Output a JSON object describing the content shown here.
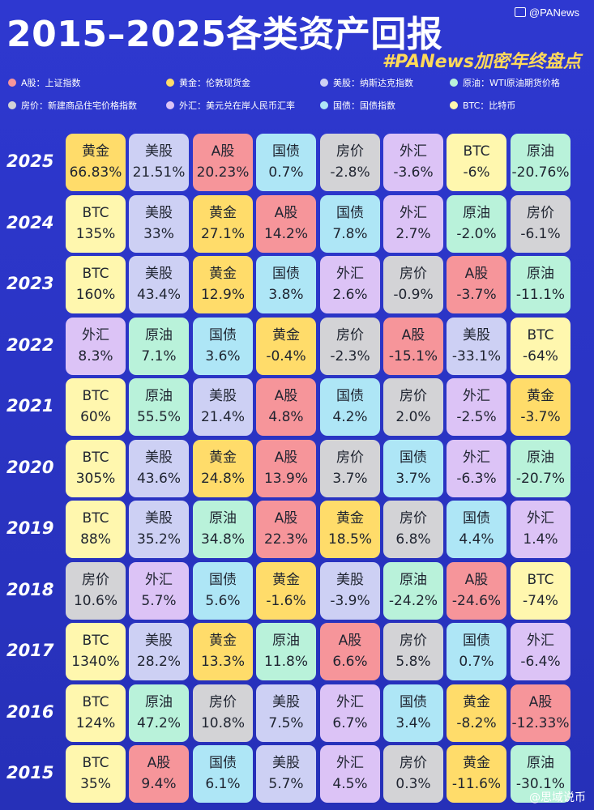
{
  "title": "2015–2025各类资产回报",
  "brand": "@PANews",
  "subtitle": "#PANews加密年终盘点",
  "watermark": "@思域说币",
  "legend": [
    {
      "label": "A股：上证指数",
      "color": "#f6959a",
      "class": "c-ashare"
    },
    {
      "label": "黄金：伦敦现货金",
      "color": "#ffdc6a",
      "class": "c-gold"
    },
    {
      "label": "美股：纳斯达克指数",
      "color": "#cdd0f4",
      "class": "c-us"
    },
    {
      "label": "原油：WTI原油期货价格",
      "color": "#b9f2da",
      "class": "c-oil"
    },
    {
      "label": "房价：新建商品住宅价格指数",
      "color": "#d3d3d6",
      "class": "c-house"
    },
    {
      "label": "外汇：美元兑在岸人民币汇率",
      "color": "#dcc3f6",
      "class": "c-fx"
    },
    {
      "label": "国债：国债指数",
      "color": "#aee6f6",
      "class": "c-bond"
    },
    {
      "label": "BTC：比特币",
      "color": "#fff7ae",
      "class": "c-btc"
    }
  ],
  "rows": [
    {
      "year": "2025",
      "cells": [
        {
          "asset": "黄金",
          "ret": "66.83%"
        },
        {
          "asset": "美股",
          "ret": "21.51%"
        },
        {
          "asset": "A股",
          "ret": "20.23%"
        },
        {
          "asset": "国债",
          "ret": "0.7%"
        },
        {
          "asset": "房价",
          "ret": "-2.8%"
        },
        {
          "asset": "外汇",
          "ret": "-3.6%"
        },
        {
          "asset": "BTC",
          "ret": "-6%"
        },
        {
          "asset": "原油",
          "ret": "-20.76%"
        }
      ]
    },
    {
      "year": "2024",
      "cells": [
        {
          "asset": "BTC",
          "ret": "135%"
        },
        {
          "asset": "美股",
          "ret": "33%"
        },
        {
          "asset": "黄金",
          "ret": "27.1%"
        },
        {
          "asset": "A股",
          "ret": "14.2%"
        },
        {
          "asset": "国债",
          "ret": "7.8%"
        },
        {
          "asset": "外汇",
          "ret": "2.7%"
        },
        {
          "asset": "原油",
          "ret": "-2.0%"
        },
        {
          "asset": "房价",
          "ret": "-6.1%"
        }
      ]
    },
    {
      "year": "2023",
      "cells": [
        {
          "asset": "BTC",
          "ret": "160%"
        },
        {
          "asset": "美股",
          "ret": "43.4%"
        },
        {
          "asset": "黄金",
          "ret": "12.9%"
        },
        {
          "asset": "国债",
          "ret": "3.8%"
        },
        {
          "asset": "外汇",
          "ret": "2.6%"
        },
        {
          "asset": "房价",
          "ret": "-0.9%"
        },
        {
          "asset": "A股",
          "ret": "-3.7%"
        },
        {
          "asset": "原油",
          "ret": "-11.1%"
        }
      ]
    },
    {
      "year": "2022",
      "cells": [
        {
          "asset": "外汇",
          "ret": "8.3%"
        },
        {
          "asset": "原油",
          "ret": "7.1%"
        },
        {
          "asset": "国债",
          "ret": "3.6%"
        },
        {
          "asset": "黄金",
          "ret": "-0.4%"
        },
        {
          "asset": "房价",
          "ret": "-2.3%"
        },
        {
          "asset": "A股",
          "ret": "-15.1%"
        },
        {
          "asset": "美股",
          "ret": "-33.1%"
        },
        {
          "asset": "BTC",
          "ret": "-64%"
        }
      ]
    },
    {
      "year": "2021",
      "cells": [
        {
          "asset": "BTC",
          "ret": "60%"
        },
        {
          "asset": "原油",
          "ret": "55.5%"
        },
        {
          "asset": "美股",
          "ret": "21.4%"
        },
        {
          "asset": "A股",
          "ret": "4.8%"
        },
        {
          "asset": "国债",
          "ret": "4.2%"
        },
        {
          "asset": "房价",
          "ret": "2.0%"
        },
        {
          "asset": "外汇",
          "ret": "-2.5%"
        },
        {
          "asset": "黄金",
          "ret": "-3.7%"
        }
      ]
    },
    {
      "year": "2020",
      "cells": [
        {
          "asset": "BTC",
          "ret": "305%"
        },
        {
          "asset": "美股",
          "ret": "43.6%"
        },
        {
          "asset": "黄金",
          "ret": "24.8%"
        },
        {
          "asset": "A股",
          "ret": "13.9%"
        },
        {
          "asset": "房价",
          "ret": "3.7%"
        },
        {
          "asset": "国债",
          "ret": "3.7%"
        },
        {
          "asset": "外汇",
          "ret": "-6.3%"
        },
        {
          "asset": "原油",
          "ret": "-20.7%"
        }
      ]
    },
    {
      "year": "2019",
      "cells": [
        {
          "asset": "BTC",
          "ret": "88%"
        },
        {
          "asset": "美股",
          "ret": "35.2%"
        },
        {
          "asset": "原油",
          "ret": "34.8%"
        },
        {
          "asset": "A股",
          "ret": "22.3%"
        },
        {
          "asset": "黄金",
          "ret": "18.5%"
        },
        {
          "asset": "房价",
          "ret": "6.8%"
        },
        {
          "asset": "国债",
          "ret": "4.4%"
        },
        {
          "asset": "外汇",
          "ret": "1.4%"
        }
      ]
    },
    {
      "year": "2018",
      "cells": [
        {
          "asset": "房价",
          "ret": "10.6%"
        },
        {
          "asset": "外汇",
          "ret": "5.7%"
        },
        {
          "asset": "国债",
          "ret": "5.6%"
        },
        {
          "asset": "黄金",
          "ret": "-1.6%"
        },
        {
          "asset": "美股",
          "ret": "-3.9%"
        },
        {
          "asset": "原油",
          "ret": "-24.2%"
        },
        {
          "asset": "A股",
          "ret": "-24.6%"
        },
        {
          "asset": "BTC",
          "ret": "-74%"
        }
      ]
    },
    {
      "year": "2017",
      "cells": [
        {
          "asset": "BTC",
          "ret": "1340%"
        },
        {
          "asset": "美股",
          "ret": "28.2%"
        },
        {
          "asset": "黄金",
          "ret": "13.3%"
        },
        {
          "asset": "原油",
          "ret": "11.8%"
        },
        {
          "asset": "A股",
          "ret": "6.6%"
        },
        {
          "asset": "房价",
          "ret": "5.8%"
        },
        {
          "asset": "国债",
          "ret": "0.7%"
        },
        {
          "asset": "外汇",
          "ret": "-6.4%"
        }
      ]
    },
    {
      "year": "2016",
      "cells": [
        {
          "asset": "BTC",
          "ret": "124%"
        },
        {
          "asset": "原油",
          "ret": "47.2%"
        },
        {
          "asset": "房价",
          "ret": "10.8%"
        },
        {
          "asset": "美股",
          "ret": "7.5%"
        },
        {
          "asset": "外汇",
          "ret": "6.7%"
        },
        {
          "asset": "国债",
          "ret": "3.4%"
        },
        {
          "asset": "黄金",
          "ret": "-8.2%"
        },
        {
          "asset": "A股",
          "ret": "-12.33%"
        }
      ]
    },
    {
      "year": "2015",
      "cells": [
        {
          "asset": "BTC",
          "ret": "35%"
        },
        {
          "asset": "A股",
          "ret": "9.4%"
        },
        {
          "asset": "国债",
          "ret": "6.1%"
        },
        {
          "asset": "美股",
          "ret": "5.7%"
        },
        {
          "asset": "外汇",
          "ret": "4.5%"
        },
        {
          "asset": "房价",
          "ret": "0.3%"
        },
        {
          "asset": "黄金",
          "ret": "-11.6%"
        },
        {
          "asset": "原油",
          "ret": "-30.1%"
        }
      ]
    }
  ]
}
